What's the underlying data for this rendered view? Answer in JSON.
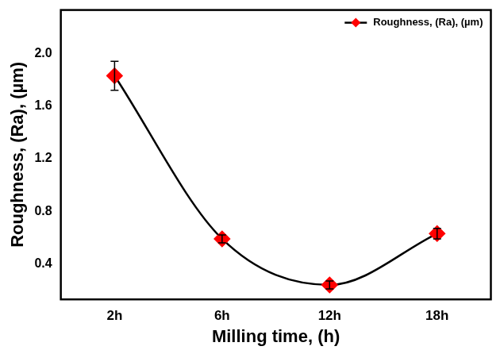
{
  "chart_data": {
    "type": "line",
    "xlabel": "Milling time, (h)",
    "ylabel": "Roughness, (Ra), (µm)",
    "categories": [
      "2h",
      "6h",
      "12h",
      "18h"
    ],
    "series": [
      {
        "name": "Roughness, (Ra), (µm)",
        "color": "#ff0000",
        "marker": "diamond",
        "line_style": "solid",
        "values": [
          1.83,
          0.59,
          0.24,
          0.63
        ],
        "errors": [
          0.11,
          0.03,
          0.03,
          0.04
        ]
      }
    ],
    "ylim": [
      0.13,
      2.33
    ],
    "yticks": [
      0.4,
      0.8,
      1.2,
      1.6,
      {
        "value": 2,
        "label": "2.0"
      }
    ],
    "grid": false,
    "legend": "upper right"
  }
}
